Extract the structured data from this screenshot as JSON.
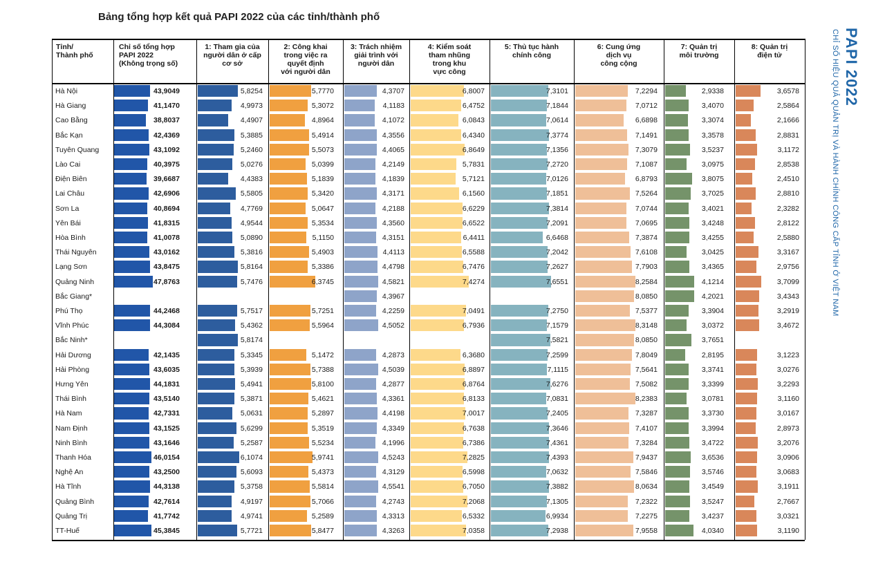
{
  "title": "Bảng tổng hợp kết quả PAPI 2022 của các tỉnh/thành phố",
  "side_title": "PAPI 2022",
  "side_subtitle": "CHỈ SỐ HIỆU QUẢ QUẢN TRỊ VÀ HÀNH CHÍNH CÔNG CẤP TỈNH Ở VIỆT NAM",
  "colors": {
    "overall": "#2156a8",
    "c1": "#2d5d9e",
    "c2": "#f0a040",
    "c3": "#8ea4c9",
    "c4": "#fdd98a",
    "c5": "#86b3bf",
    "c6": "#efbf98",
    "c7": "#75936a",
    "c8": "#d9875a"
  },
  "chart_data": {
    "type": "table",
    "headers": [
      "Tỉnh/\nThành phố",
      "Chỉ số tổng hợp\nPAPI 2022\n(Không trọng số)",
      "1: Tham gia của\nngười dân ở cấp\ncơ sở",
      "2: Công khai\ntrong việc ra\nquyết định\nvới người dân",
      "3: Trách nhiệm\ngiải trình với\nngười dân",
      "4: Kiểm soát\ntham nhũng\ntrong khu\nvực công",
      "5: Thủ tục hành\nchính công",
      "6: Cung ứng\ndịch vụ\ncông cộng",
      "7: Quản trị\nmôi trường",
      "8: Quản trị\nđiện tử"
    ],
    "ranges": {
      "overall": [
        0,
        50
      ],
      "c1": [
        0,
        6.2
      ],
      "c2": [
        0,
        6.4
      ],
      "c3": [
        0,
        4.6
      ],
      "c4": [
        0,
        7.5
      ],
      "c5": [
        0,
        7.7
      ],
      "c6": [
        0,
        8.3
      ],
      "c7": [
        0,
        4.2
      ],
      "c8": [
        0,
        3.8
      ]
    },
    "rows": [
      {
        "province": "Hà Nội",
        "values": [
          "43,9049",
          "5,8254",
          "5,7770",
          "4,3707",
          "6,8007",
          "7,3101",
          "7,2294",
          "2,9338",
          "3,6578"
        ]
      },
      {
        "province": "Hà Giang",
        "values": [
          "41,1470",
          "4,9973",
          "5,3072",
          "4,1183",
          "6,4752",
          "7,1844",
          "7,0712",
          "3,4070",
          "2,5864"
        ]
      },
      {
        "province": "Cao Bằng",
        "values": [
          "38,8037",
          "4,4907",
          "4,8964",
          "4,1072",
          "6,0843",
          "7,0614",
          "6,6898",
          "3,3074",
          "2,1666"
        ]
      },
      {
        "province": "Bắc Kạn",
        "values": [
          "42,4369",
          "5,3885",
          "5,4914",
          "4,3556",
          "6,4340",
          "7,3774",
          "7,1491",
          "3,3578",
          "2,8831"
        ]
      },
      {
        "province": "Tuyên Quang",
        "values": [
          "43,1092",
          "5,2460",
          "5,5073",
          "4,4065",
          "6,8649",
          "7,1356",
          "7,3079",
          "3,5237",
          "3,1172"
        ]
      },
      {
        "province": "Lào Cai",
        "values": [
          "40,3975",
          "5,0276",
          "5,0399",
          "4,2149",
          "5,7831",
          "7,2720",
          "7,1087",
          "3,0975",
          "2,8538"
        ]
      },
      {
        "province": "Điện Biên",
        "values": [
          "39,6687",
          "4,4383",
          "5,1839",
          "4,1839",
          "5,7121",
          "7,0126",
          "6,8793",
          "3,8075",
          "2,4510"
        ]
      },
      {
        "province": "Lai Châu",
        "values": [
          "42,6906",
          "5,5805",
          "5,3420",
          "4,3171",
          "6,1560",
          "7,1851",
          "7,5264",
          "3,7025",
          "2,8810"
        ]
      },
      {
        "province": "Sơn La",
        "values": [
          "40,8694",
          "4,7769",
          "5,0647",
          "4,2188",
          "6,6229",
          "7,3814",
          "7,0744",
          "3,4021",
          "2,3282"
        ]
      },
      {
        "province": "Yên Bái",
        "values": [
          "41,8315",
          "4,9544",
          "5,3534",
          "4,3560",
          "6,6522",
          "7,2091",
          "7,0695",
          "3,4248",
          "2,8122"
        ]
      },
      {
        "province": "Hòa Bình",
        "values": [
          "41,0078",
          "5,0890",
          "5,1150",
          "4,3151",
          "6,4411",
          "6,6468",
          "7,3874",
          "3,4255",
          "2,5880"
        ]
      },
      {
        "province": "Thái Nguyên",
        "values": [
          "43,0162",
          "5,3816",
          "5,4903",
          "4,4113",
          "6,5588",
          "7,2042",
          "7,6108",
          "3,0425",
          "3,3167"
        ]
      },
      {
        "province": "Lạng Sơn",
        "values": [
          "43,8475",
          "5,8164",
          "5,3386",
          "4,4798",
          "6,7476",
          "7,2627",
          "7,7903",
          "3,4365",
          "2,9756"
        ]
      },
      {
        "province": "Quảng Ninh",
        "values": [
          "47,8763",
          "5,7476",
          "6,3745",
          "4,5821",
          "7,4274",
          "7,6551",
          "8,2584",
          "4,1214",
          "3,7099"
        ]
      },
      {
        "province": "Bắc Giang*",
        "values": [
          "",
          "",
          "",
          "4,3967",
          "",
          "",
          "8,0850",
          "4,2021",
          "3,4343"
        ]
      },
      {
        "province": "Phú Thọ",
        "values": [
          "44,2468",
          "5,7517",
          "5,7251",
          "4,2259",
          "7,0491",
          "7,2750",
          "7,5377",
          "3,3904",
          "3,2919"
        ]
      },
      {
        "province": "Vĩnh Phúc",
        "values": [
          "44,3084",
          "5,4362",
          "5,5964",
          "4,5052",
          "6,7936",
          "7,1579",
          "8,3148",
          "3,0372",
          "3,4672"
        ]
      },
      {
        "province": "Bắc Ninh*",
        "values": [
          "",
          "5,8174",
          "",
          "",
          "",
          "7,5821",
          "8,0850",
          "3,7651",
          ""
        ]
      },
      {
        "province": "Hải Dương",
        "values": [
          "42,1435",
          "5,3345",
          "5,1472",
          "4,2873",
          "6,3680",
          "7,2599",
          "7,8049",
          "2,8195",
          "3,1223"
        ]
      },
      {
        "province": "Hải Phòng",
        "values": [
          "43,6035",
          "5,3939",
          "5,7388",
          "4,5039",
          "6,8897",
          "7,1115",
          "7,5641",
          "3,3741",
          "3,0276"
        ]
      },
      {
        "province": "Hưng Yên",
        "values": [
          "44,1831",
          "5,4941",
          "5,8100",
          "4,2877",
          "6,8764",
          "7,6276",
          "7,5082",
          "3,3399",
          "3,2293"
        ]
      },
      {
        "province": "Thái Bình",
        "values": [
          "43,5140",
          "5,3871",
          "5,4621",
          "4,3361",
          "6,8133",
          "7,0831",
          "8,2383",
          "3,0781",
          "3,1160"
        ]
      },
      {
        "province": "Hà Nam",
        "values": [
          "42,7331",
          "5,0631",
          "5,2897",
          "4,4198",
          "7,0017",
          "7,2405",
          "7,3287",
          "3,3730",
          "3,0167"
        ]
      },
      {
        "province": "Nam Định",
        "values": [
          "43,1525",
          "5,6299",
          "5,3519",
          "4,3349",
          "6,7638",
          "7,3646",
          "7,4107",
          "3,3994",
          "2,8973"
        ]
      },
      {
        "province": "Ninh Bình",
        "values": [
          "43,1646",
          "5,2587",
          "5,5234",
          "4,1996",
          "6,7386",
          "7,4361",
          "7,3284",
          "3,4722",
          "3,2076"
        ]
      },
      {
        "province": "Thanh Hóa",
        "values": [
          "46,0154",
          "6,1074",
          "5,9741",
          "4,5243",
          "7,2825",
          "7,4393",
          "7,9437",
          "3,6536",
          "3,0906"
        ]
      },
      {
        "province": "Nghệ An",
        "values": [
          "43,2500",
          "5,6093",
          "5,4373",
          "4,3129",
          "6,5998",
          "7,0632",
          "7,5846",
          "3,5746",
          "3,0683"
        ]
      },
      {
        "province": "Hà Tĩnh",
        "values": [
          "44,3138",
          "5,3758",
          "5,5814",
          "4,5541",
          "6,7050",
          "7,3882",
          "8,0634",
          "3,4549",
          "3,1911"
        ]
      },
      {
        "province": "Quảng Bình",
        "values": [
          "42,7614",
          "4,9197",
          "5,7066",
          "4,2743",
          "7,2068",
          "7,1305",
          "7,2322",
          "3,5247",
          "2,7667"
        ]
      },
      {
        "province": "Quảng Trị",
        "values": [
          "41,7742",
          "4,9741",
          "5,2589",
          "4,3313",
          "6,5332",
          "6,9934",
          "7,2275",
          "3,4237",
          "3,0321"
        ]
      },
      {
        "province": "TT-Huế",
        "values": [
          "45,3845",
          "5,7721",
          "5,8477",
          "4,3263",
          "7,0358",
          "7,2938",
          "7,9558",
          "4,0340",
          "3,1190"
        ]
      }
    ]
  }
}
